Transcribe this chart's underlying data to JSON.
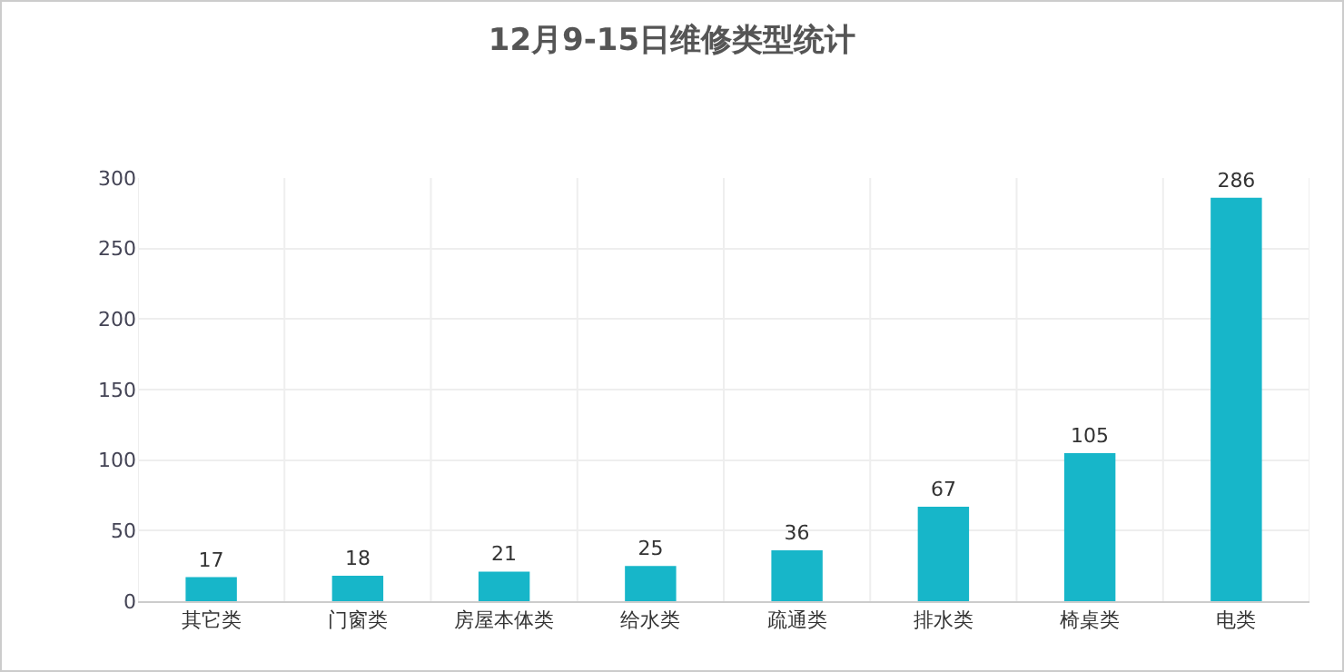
{
  "chart_data": {
    "type": "bar",
    "title": "12月9-15日维修类型统计",
    "categories": [
      "其它类",
      "门窗类",
      "房屋本体类",
      "给水类",
      "疏通类",
      "排水类",
      "椅桌类",
      "电类"
    ],
    "values": [
      17,
      18,
      21,
      25,
      36,
      67,
      105,
      286
    ],
    "color": "#17b6c9",
    "ylim": [
      0,
      300
    ],
    "yticks": [
      0,
      50,
      100,
      150,
      200,
      250,
      300
    ],
    "grid": true,
    "data_labels": true
  }
}
